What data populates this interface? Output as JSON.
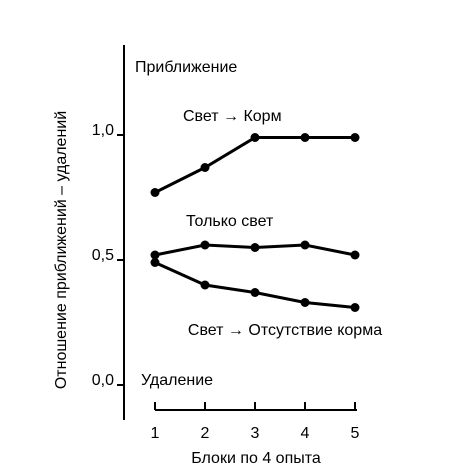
{
  "chart_data": {
    "type": "line",
    "y_label": "Отношение приближений – удалений",
    "x_label": "Блоки по 4 опыта",
    "annotations": [
      "Приближение",
      "Удаление"
    ],
    "x": [
      1,
      2,
      3,
      4,
      5
    ],
    "xlim": [
      1,
      5
    ],
    "xticks": [
      1,
      2,
      3,
      4,
      5
    ],
    "ylim": [
      -0.14,
      1.36
    ],
    "yticks": [
      {
        "value": 0,
        "label": "0,0"
      },
      {
        "value": 0.5,
        "label": "0,5"
      },
      {
        "value": 1,
        "label": "1,0"
      }
    ],
    "series": [
      {
        "name": "Свет → Корм",
        "color": "#000000",
        "values": [
          0.77,
          0.87,
          0.99,
          0.99,
          0.99
        ]
      },
      {
        "name": "Только свет",
        "color": "#000000",
        "values": [
          0.52,
          0.56,
          0.55,
          0.56,
          0.52
        ]
      },
      {
        "name": "Свет → Отсутствие корма",
        "color": "#000000",
        "values": [
          0.49,
          0.4,
          0.37,
          0.33,
          0.31
        ]
      }
    ]
  }
}
